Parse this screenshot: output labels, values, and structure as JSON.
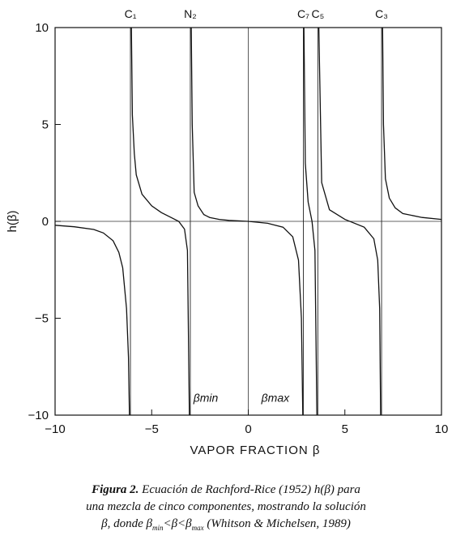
{
  "chart_data": {
    "type": "line",
    "xlabel": "VAPOR FRACTION β",
    "ylabel": "h(β)",
    "xlim": [
      -10,
      10
    ],
    "ylim": [
      -10,
      10
    ],
    "x_ticks": [
      "−10",
      "−5",
      "0",
      "5",
      "10"
    ],
    "y_ticks": [
      "10",
      "5",
      "0",
      "−5",
      "−10"
    ],
    "asymptotes": [
      {
        "label": "C₁",
        "x": -6.1
      },
      {
        "label": "N₂",
        "x": -3.0
      },
      {
        "label": "C₇",
        "x": 2.85
      },
      {
        "label": "C₅",
        "x": 3.6
      },
      {
        "label": "C₃",
        "x": 6.9
      }
    ],
    "annotations": [
      {
        "label": "βmin",
        "x": -2.2,
        "y": -9.1
      },
      {
        "label": "βmax",
        "x": 1.4,
        "y": -9.1
      }
    ],
    "series": [
      {
        "x": [
          -10,
          -9,
          -8,
          -7.5,
          -7,
          -6.7,
          -6.5,
          -6.3,
          -6.2,
          -6.15
        ],
        "y": [
          -0.2,
          -0.28,
          -0.42,
          -0.6,
          -1.0,
          -1.6,
          -2.4,
          -4.5,
          -7.0,
          -10
        ]
      },
      {
        "x": [
          -6.05,
          -6.0,
          -5.9,
          -5.8,
          -5.5,
          -5,
          -4.5,
          -4,
          -3.6,
          -3.3,
          -3.15,
          -3.05
        ],
        "y": [
          10,
          5.5,
          3.5,
          2.4,
          1.4,
          0.8,
          0.45,
          0.2,
          0,
          -0.4,
          -1.5,
          -10
        ]
      },
      {
        "x": [
          -2.95,
          -2.9,
          -2.8,
          -2.6,
          -2.3,
          -2,
          -1.5,
          -1,
          0,
          1,
          1.8,
          2.3,
          2.6,
          2.75,
          2.82
        ],
        "y": [
          10,
          5,
          1.5,
          0.8,
          0.35,
          0.2,
          0.1,
          0.05,
          0.0,
          -0.1,
          -0.3,
          -0.8,
          -2.0,
          -5.0,
          -10
        ]
      },
      {
        "x": [
          2.88,
          2.95,
          3.1,
          3.3,
          3.45,
          3.55
        ],
        "y": [
          10,
          3.0,
          1.0,
          0.0,
          -1.5,
          -10
        ]
      },
      {
        "x": [
          3.65,
          3.8,
          4.2,
          5,
          6,
          6.5,
          6.7,
          6.8,
          6.85
        ],
        "y": [
          10,
          2.0,
          0.6,
          0.1,
          -0.3,
          -0.9,
          -2.0,
          -4.5,
          -10
        ]
      },
      {
        "x": [
          6.95,
          7.0,
          7.1,
          7.3,
          7.6,
          8,
          9,
          10
        ],
        "y": [
          10,
          5.0,
          2.2,
          1.2,
          0.7,
          0.4,
          0.2,
          0.1
        ]
      }
    ]
  },
  "caption": {
    "label": "Figura 2.",
    "line1": " Ecuación de Rachford-Rice (1952) h(β) para",
    "line2": "una mezcla de cinco componentes, mostrando la solución",
    "line3_a": "β, donde β",
    "sub_min": "min",
    "line3_b": "<β<β",
    "sub_max": "max",
    "line3_c": " (Whitson & Michelsen, 1989)"
  }
}
